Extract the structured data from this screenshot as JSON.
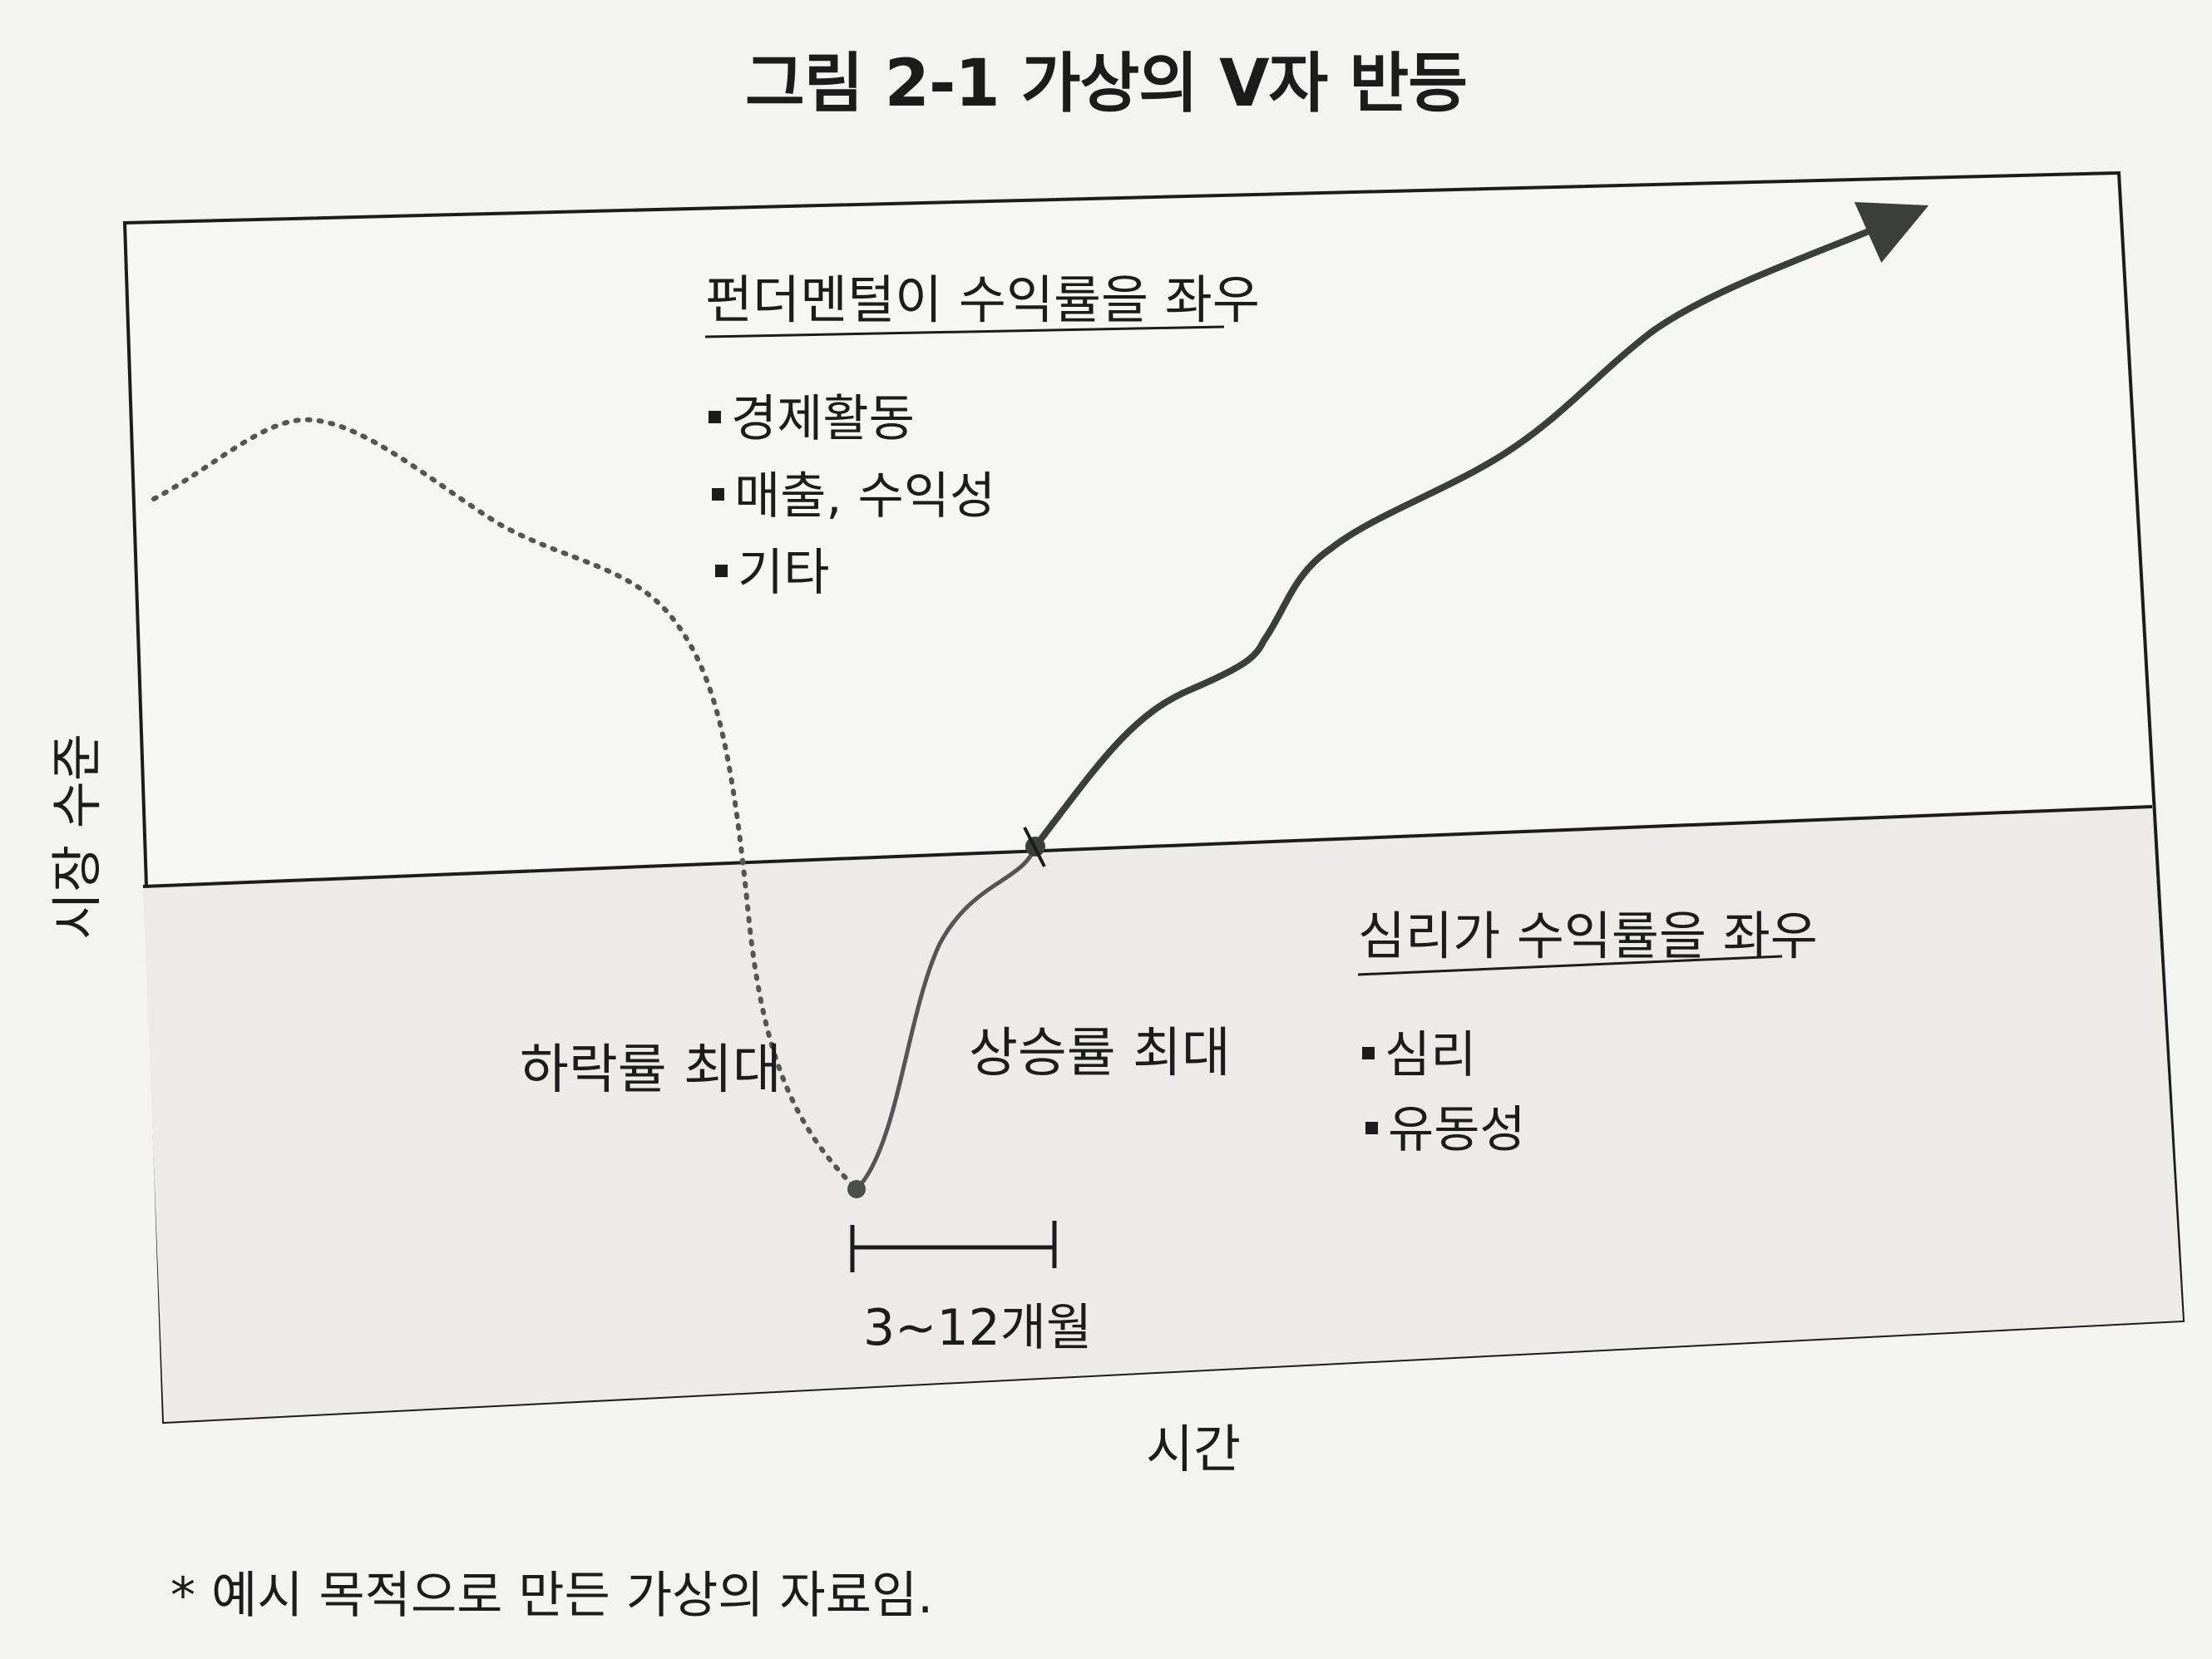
{
  "title": "그림 2-1 가상의 V자 반등",
  "top_section": {
    "heading": "펀더멘털이 수익률을 좌우",
    "items": [
      "경제활동",
      "매출, 수익성",
      "기타"
    ]
  },
  "bottom_section": {
    "heading": "심리가 수익률을 좌우",
    "items": [
      "심리",
      "유동성"
    ]
  },
  "labels": {
    "max_decline": "하락률 최대",
    "max_rise": "상승률 최대",
    "duration": "3~12개월"
  },
  "axes": {
    "y_label": "시장 수준",
    "x_label": "시간"
  },
  "footnote": "* 예시 목적으로 만든 가상의 자료임."
}
